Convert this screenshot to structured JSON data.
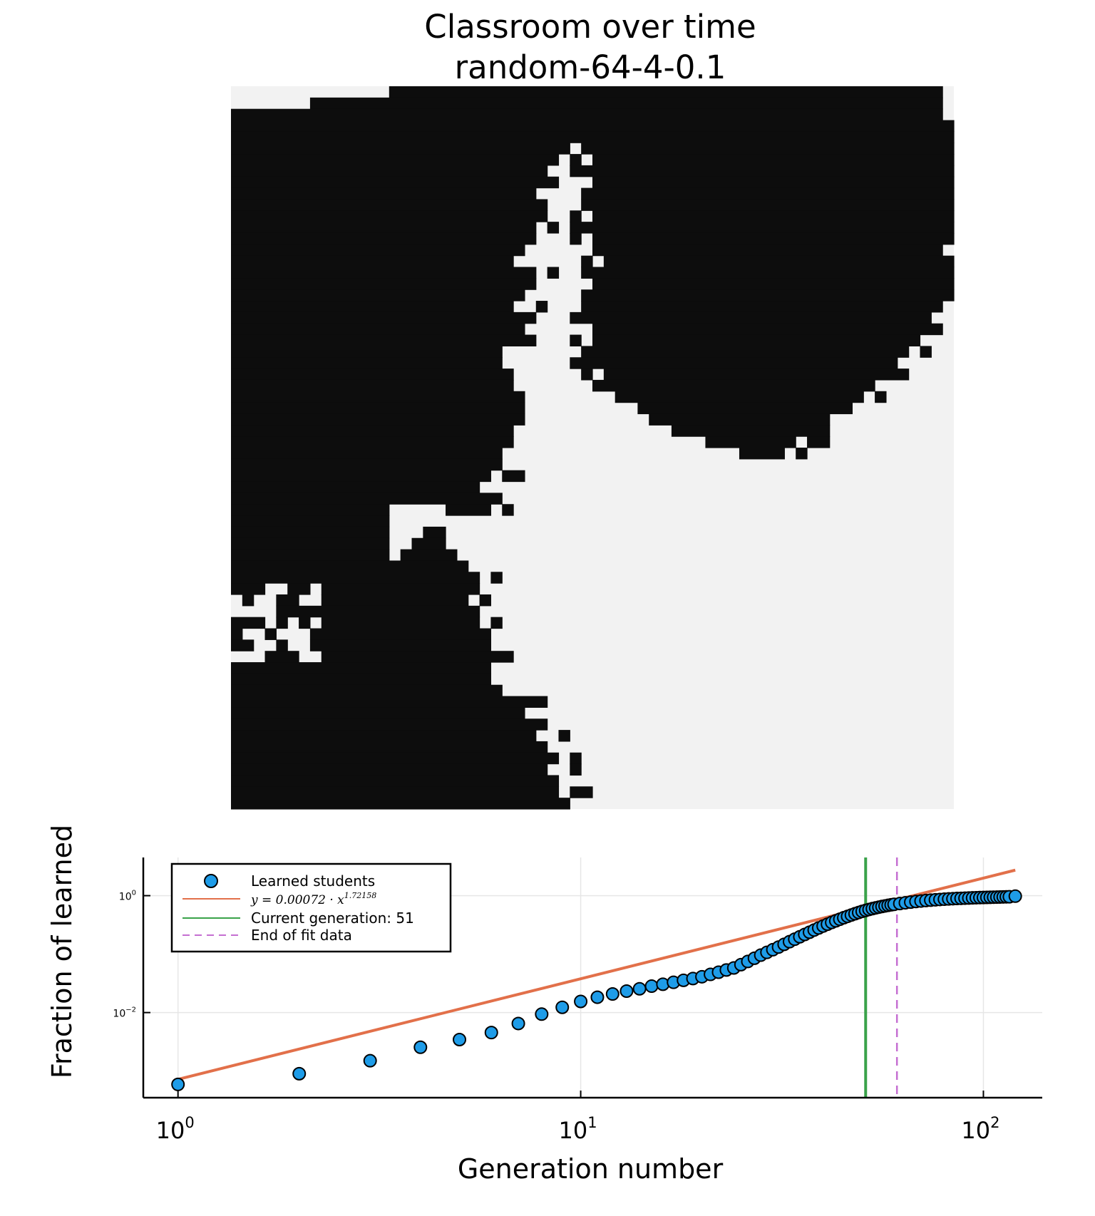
{
  "figure": {
    "title": "Classroom over time",
    "subtitle": "random-64-4-0.1"
  },
  "grid_map": {
    "rows": 64,
    "cols": 64,
    "colors": {
      "learned": "#0d0d0d",
      "not_learned": "#f2f2f2"
    }
  },
  "chart_data": {
    "type": "scatter",
    "xlabel": "Generation number",
    "ylabel": "Fraction of learned",
    "xscale": "log",
    "yscale": "log",
    "xlim": [
      0.82,
      140
    ],
    "ylim": [
      0.00035,
      4.5
    ],
    "xticks": [
      {
        "value": 1,
        "base": "10",
        "exp": "0"
      },
      {
        "value": 10,
        "base": "10",
        "exp": "1"
      },
      {
        "value": 100,
        "base": "10",
        "exp": "2"
      }
    ],
    "yticks": [
      {
        "value": 0.01,
        "base": "10",
        "exp": "−2"
      },
      {
        "value": 1,
        "base": "10",
        "exp": "0"
      }
    ],
    "grid": true,
    "legend_position": "top-left",
    "series": [
      {
        "name": "Learned students",
        "kind": "points",
        "color": "#1e9ce8",
        "x": [
          1,
          2,
          3,
          4,
          5,
          6,
          7,
          8,
          9,
          10,
          11,
          12,
          13,
          14,
          15,
          16,
          17,
          18,
          19,
          20,
          21,
          22,
          23,
          24,
          25,
          26,
          27,
          28,
          29,
          30,
          31,
          32,
          33,
          34,
          35,
          36,
          37,
          38,
          39,
          40,
          41,
          42,
          43,
          44,
          45,
          46,
          47,
          48,
          49,
          50,
          51,
          52,
          53,
          54,
          55,
          56,
          57,
          58,
          59,
          60,
          62,
          64,
          66,
          68,
          70,
          72,
          74,
          76,
          78,
          80,
          82,
          84,
          86,
          88,
          90,
          92,
          94,
          96,
          98,
          100,
          102,
          104,
          106,
          108,
          110,
          112,
          114,
          116,
          120
        ],
        "y": [
          0.00059,
          0.0009,
          0.0015,
          0.00255,
          0.00345,
          0.00455,
          0.0065,
          0.0094,
          0.0123,
          0.0155,
          0.0183,
          0.0208,
          0.0233,
          0.0255,
          0.0283,
          0.0305,
          0.0329,
          0.0356,
          0.0382,
          0.041,
          0.045,
          0.049,
          0.0535,
          0.058,
          0.066,
          0.0748,
          0.085,
          0.096,
          0.107,
          0.119,
          0.132,
          0.147,
          0.163,
          0.18,
          0.198,
          0.217,
          0.237,
          0.258,
          0.28,
          0.302,
          0.325,
          0.348,
          0.371,
          0.395,
          0.419,
          0.443,
          0.467,
          0.491,
          0.515,
          0.539,
          0.56,
          0.58,
          0.6,
          0.618,
          0.636,
          0.653,
          0.668,
          0.683,
          0.697,
          0.71,
          0.733,
          0.755,
          0.776,
          0.795,
          0.81,
          0.825,
          0.838,
          0.85,
          0.86,
          0.87,
          0.879,
          0.887,
          0.894,
          0.9,
          0.906,
          0.912,
          0.917,
          0.922,
          0.926,
          0.93,
          0.934,
          0.938,
          0.942,
          0.945,
          0.949,
          0.952,
          0.955,
          0.958,
          0.98
        ]
      },
      {
        "name": "y = 0.00072 · x^1.72158",
        "kind": "fit-line",
        "color": "#e2704a",
        "coefficient": 0.00072,
        "exponent": 1.72158,
        "x_range": [
          1,
          120
        ]
      },
      {
        "name": "Current generation: 51",
        "kind": "vline",
        "color": "#3aa24a",
        "x": 51
      },
      {
        "name": "End of fit data",
        "kind": "vline-dashed",
        "color": "#c56fd2",
        "x": 61
      }
    ],
    "legend": {
      "entries": [
        {
          "label": "Learned students"
        },
        {
          "label_prefix": "y = 0.00072 · x",
          "label_exp": "1.72158"
        },
        {
          "label": "Current generation: 51"
        },
        {
          "label": "End of fit data"
        }
      ]
    }
  }
}
